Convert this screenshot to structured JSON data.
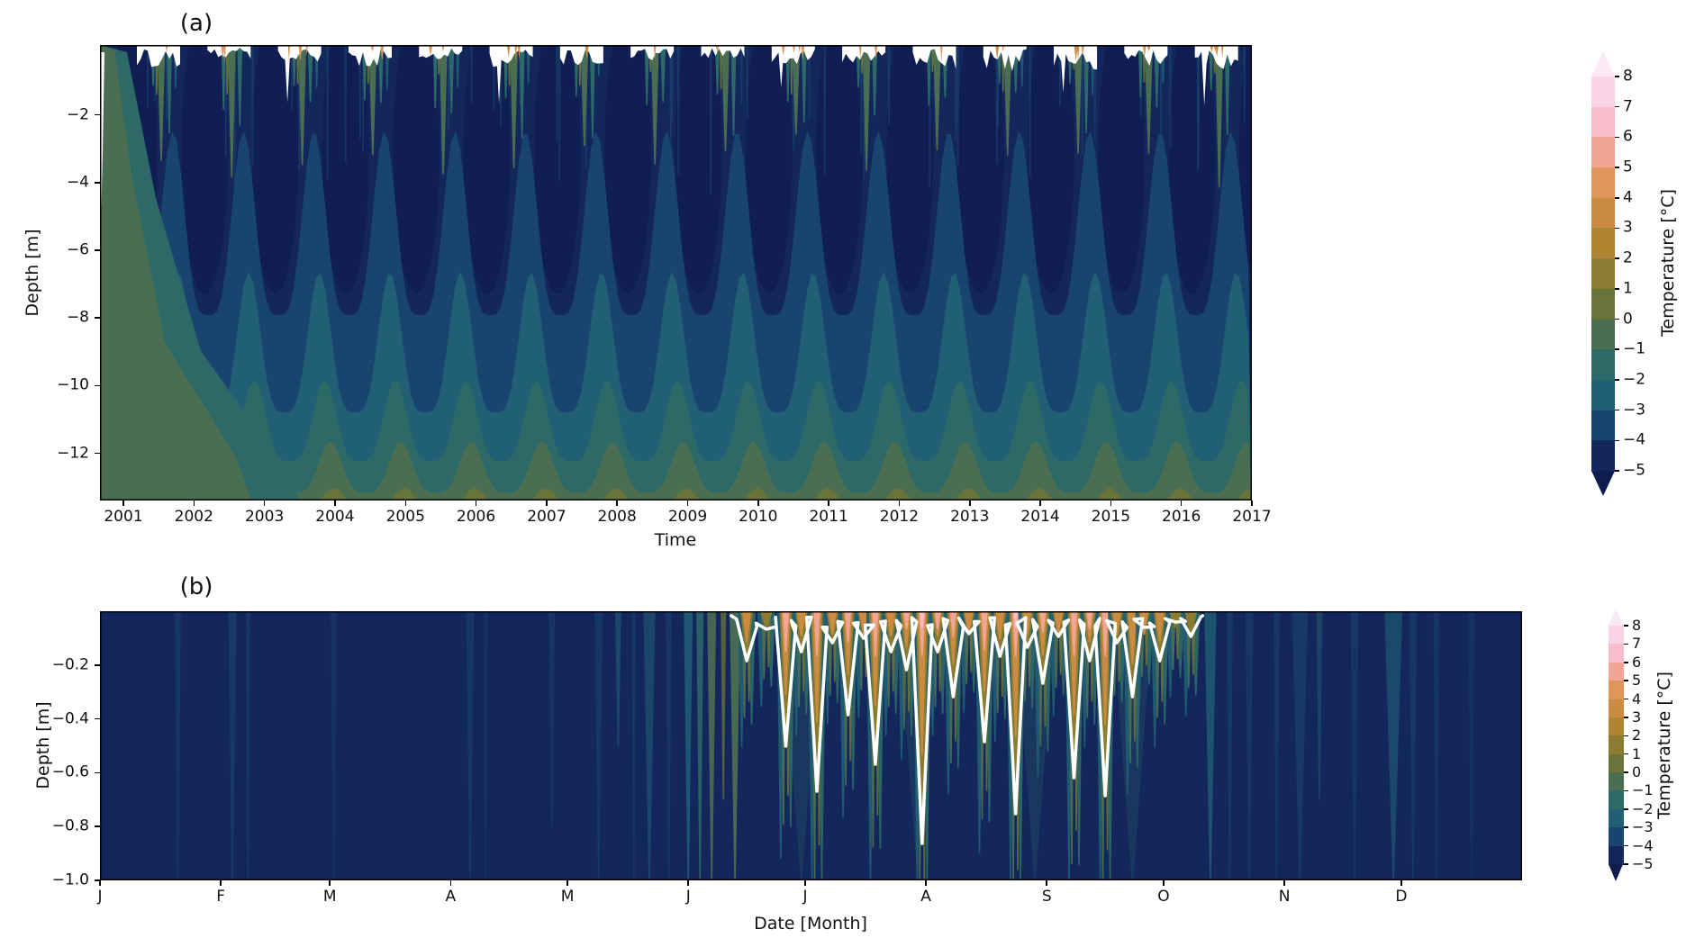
{
  "panel_a": {
    "title": "(a)",
    "xlabel": "Time",
    "ylabel": "Depth [m]",
    "x_ticks": [
      "2001",
      "2002",
      "2003",
      "2004",
      "2005",
      "2006",
      "2007",
      "2008",
      "2009",
      "2010",
      "2011",
      "2012",
      "2013",
      "2014",
      "2015",
      "2016",
      "2017"
    ],
    "y_ticks": [
      "−2",
      "−4",
      "−6",
      "−8",
      "−10",
      "−12"
    ]
  },
  "panel_b": {
    "title": "(b)",
    "xlabel": "Date [Month]",
    "ylabel": "Depth [m]",
    "x_ticks": [
      "J",
      "F",
      "M",
      "A",
      "M",
      "J",
      "J",
      "A",
      "S",
      "O",
      "N",
      "D"
    ],
    "y_ticks": [
      "−0.2",
      "−0.4",
      "−0.6",
      "−0.8",
      "−1.0"
    ]
  },
  "colorbar": {
    "label": "Temperature [°C]",
    "ticks": [
      "8",
      "7",
      "6",
      "5",
      "4",
      "3",
      "2",
      "1",
      "0",
      "−1",
      "−2",
      "−3",
      "−4",
      "−5"
    ]
  },
  "palette": {
    "under": "#0e1c50",
    "bands": [
      "#14275d",
      "#1a4470",
      "#215f74",
      "#2d6a67",
      "#4b6e52",
      "#687439",
      "#8c7c32",
      "#af8531",
      "#cb8c42",
      "#e0955c",
      "#f0a595",
      "#f8bccb",
      "#fbd3e6"
    ],
    "over": "#fce8f5",
    "cold_core": "#101e53",
    "white_contour": "#ffffff",
    "axis_color": "#000000",
    "background": "#ffffff"
  },
  "chart_data": [
    {
      "type": "contour",
      "panel": "a",
      "title": "(a)",
      "xlabel": "Time",
      "ylabel": "Depth [m]",
      "x_tick_labels": [
        2001,
        2002,
        2003,
        2004,
        2005,
        2006,
        2007,
        2008,
        2009,
        2010,
        2011,
        2012,
        2013,
        2014,
        2015,
        2016,
        2017
      ],
      "x_range_years": [
        2000.55,
        2017.0
      ],
      "y_range_m": [
        -13.4,
        0.0
      ],
      "y_tick_values_m": [
        -2,
        -4,
        -6,
        -8,
        -10,
        -12
      ],
      "colorbar_label": "Temperature [°C]",
      "contour_levels_degC": [
        -5,
        -4,
        -3,
        -2,
        -1,
        0,
        1,
        2,
        3,
        4,
        5,
        6,
        7,
        8
      ],
      "colorbar_extend": "both",
      "grid": false,
      "field_summary": {
        "winter_upper_column_degC": [
          -5,
          -4
        ],
        "summer_surface_caps": "white (off-scale / >8°C) notches at the surface each summer with thin 2–5°C orange streaks",
        "summer_warm_penetration_m": [
          -1,
          -3
        ],
        "bottom_water_degC": [
          -1,
          0
        ],
        "pattern": "Annual cycle repeated 2001–2017: cold −5 to −4°C core fills roughly 0 to −8 m in winter; isotherms (−4,−3,−2,−1°C) undulate yearly, rising toward the surface each summer; temperature increases with depth, reaching −1 to 0°C near −12 to −13 m; warm start-of-record profile (≥−1°C) in late 2000 at the left edge"
      }
    },
    {
      "type": "contour",
      "panel": "b",
      "title": "(b)",
      "xlabel": "Date [Month]",
      "ylabel": "Depth [m]",
      "x_tick_labels": [
        "J",
        "F",
        "M",
        "A",
        "M",
        "J",
        "J",
        "A",
        "S",
        "O",
        "N",
        "D"
      ],
      "x_range": "Jan 1 to Dec 31 (climatological year)",
      "y_range_m": [
        -1.0,
        0.0
      ],
      "y_tick_values_m": [
        -0.2,
        -0.4,
        -0.6,
        -0.8,
        -1.0
      ],
      "colorbar_label": "Temperature [°C]",
      "contour_levels_degC": [
        -5,
        -4,
        -3,
        -2,
        -1,
        0,
        1,
        2,
        3,
        4,
        5,
        6,
        7,
        8
      ],
      "colorbar_extend": "both",
      "grid": false,
      "zero_degC_contour_color": "#ffffff",
      "field_summary": {
        "cold_season_degC": [
          -5,
          -4
        ],
        "warm_period": "mid-June through early October",
        "peak_month": "August",
        "peak_surface_degC": [
          4,
          6
        ],
        "thaw_plume_depth_m": "warm plumes (outlined by the white 0°C contour) reach −0.2 to −1.0 m; deepest August plume ≈ −0.85 m",
        "pattern": "Uniform −5 to −4°C background with faint cold streaks in winter; dense vertical warm plumes Jun–Oct with orange/salmon/pink (3–8°C) tips near the surface, each wrapped by a white 0°C isotherm"
      }
    }
  ]
}
